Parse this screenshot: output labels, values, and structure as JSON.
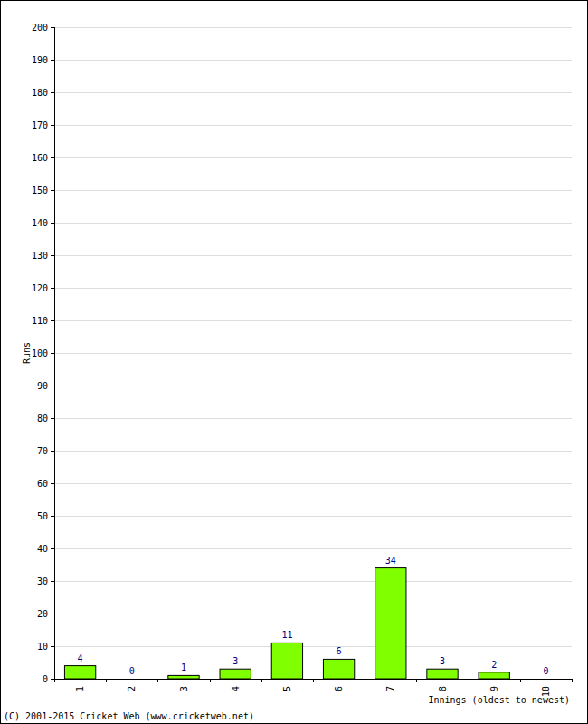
{
  "chart_data": {
    "type": "bar",
    "x_label": "Innings (oldest to newest)",
    "y_label": "Runs",
    "annotations": [
      "(C) 2001-2015 Cricket Web (www.cricketweb.net)"
    ],
    "categories": [
      "1",
      "2",
      "3",
      "4",
      "5",
      "6",
      "7",
      "8",
      "9",
      "10"
    ],
    "values": [
      4,
      0,
      1,
      3,
      11,
      6,
      34,
      3,
      2,
      0
    ],
    "color": "#80ff00",
    "ylim": [
      0,
      200
    ],
    "yticks": [
      0,
      10,
      20,
      30,
      40,
      50,
      60,
      70,
      80,
      90,
      100,
      110,
      120,
      130,
      140,
      150,
      160,
      170,
      180,
      190,
      200
    ],
    "grid": true,
    "data_labels": true
  }
}
